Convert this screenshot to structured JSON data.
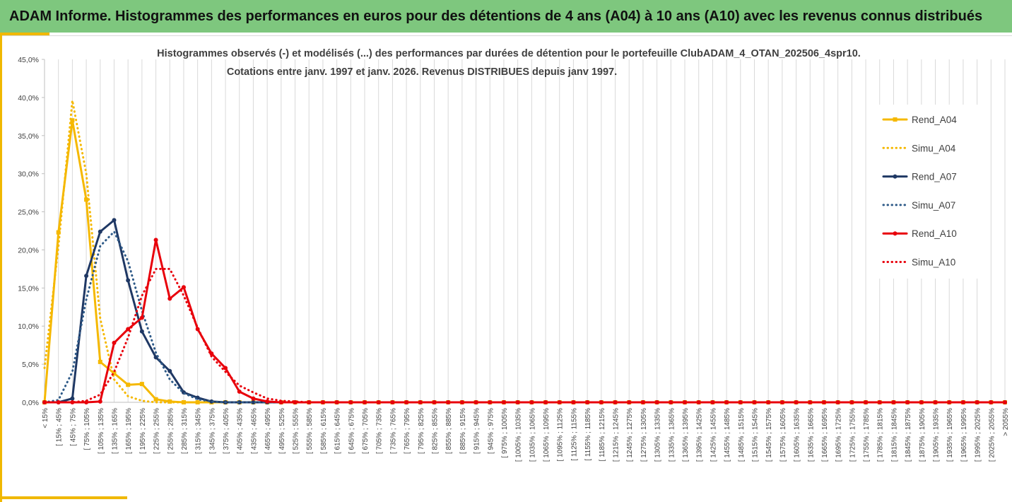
{
  "header": {
    "title": "ADAM Informe. Histogrammes des performances en euros pour des détentions de 4 ans (A04) à 10 ans (A10) avec les revenus connus distribués"
  },
  "colors": {
    "header_bg": "#7ec77e",
    "accent": "#f0b800",
    "A04": "#f5b800",
    "A07": "#1f3864",
    "A07_dotted": "#2e5a88",
    "A10": "#e8000b"
  },
  "chart_data": {
    "type": "line",
    "title_line1": "Histogrammes observés (-) et modélisés (...) des performances par durées de détention pour le portefeuille ClubADAM_4_OTAN_202506_4spr10.",
    "title_line2": "Cotations  entre  janv. 1997 et janv. 2026. Revenus DISTRIBUES depuis janv 1997.",
    "xlabel": "",
    "ylabel": "",
    "ylim": [
      0,
      45
    ],
    "yticks": [
      "0,0%",
      "5,0%",
      "10,0%",
      "15,0%",
      "20,0%",
      "25,0%",
      "30,0%",
      "35,0%",
      "40,0%",
      "45,0%"
    ],
    "legend_position": "right",
    "grid": "vertical",
    "categories": [
      "< 15%",
      "[ 15% ; 45%",
      "[ 45% ; 75%",
      "[ 75% ; 105%",
      "[ 105% ; 135%",
      "[ 135% ; 165%",
      "[ 165% ; 195%",
      "[ 195% ; 225%",
      "[ 225% ; 255%",
      "[ 255% ; 285%",
      "[ 285% ; 315%",
      "[ 315% ; 345%",
      "[ 345% ; 375%",
      "[ 375% ; 405%",
      "[ 405% ; 435%",
      "[ 435% ; 465%",
      "[ 465% ; 495%",
      "[ 495% ; 525%",
      "[ 525% ; 555%",
      "[ 555% ; 585%",
      "[ 585% ; 615%",
      "[ 615% ; 645%",
      "[ 645% ; 675%",
      "[ 675% ; 705%",
      "[ 705% ; 735%",
      "[ 735% ; 765%",
      "[ 765% ; 795%",
      "[ 795% ; 825%",
      "[ 825% ; 855%",
      "[ 855% ; 885%",
      "[ 885% ; 915%",
      "[ 915% ; 945%",
      "[ 945% ; 975%",
      "[ 975% ; 1005%",
      "[ 1005% ; 1035%",
      "[ 1035% ; 1065%",
      "[ 1065% ; 1095%",
      "[ 1095% ; 1125%",
      "[ 1125% ; 1155%",
      "[ 1155% ; 1185%",
      "[ 1185% ; 1215%",
      "[ 1215% ; 1245%",
      "[ 1245% ; 1275%",
      "[ 1275% ; 1305%",
      "[ 1305% ; 1335%",
      "[ 1335% ; 1365%",
      "[ 1365% ; 1395%",
      "[ 1395% ; 1425%",
      "[ 1425% ; 1455%",
      "[ 1455% ; 1485%",
      "[ 1485% ; 1515%",
      "[ 1515% ; 1545%",
      "[ 1545% ; 1575%",
      "[ 1575% ; 1605%",
      "[ 1605% ; 1635%",
      "[ 1635% ; 1665%",
      "[ 1665% ; 1695%",
      "[ 1695% ; 1725%",
      "[ 1725% ; 1755%",
      "[ 1755% ; 1785%",
      "[ 1785% ; 1815%",
      "[ 1815% ; 1845%",
      "[ 1845% ; 1875%",
      "[ 1875% ; 1905%",
      "[ 1905% ; 1935%",
      "[ 1935% ; 1965%",
      "[ 1965% ; 1995%",
      "[ 1995% ; 2025%",
      "[ 2025% ; 2055%",
      "> 2055%"
    ],
    "series": [
      {
        "name": "Rend_A04",
        "style": "solid",
        "marker": "square",
        "color": "#f5b800",
        "values": [
          0,
          22.3,
          37.0,
          26.6,
          5.3,
          3.8,
          2.3,
          2.4,
          0.4,
          0.1,
          0,
          0,
          0,
          0,
          0,
          0,
          0,
          0,
          0,
          0,
          0,
          0,
          0,
          0,
          0,
          0,
          0,
          0,
          0,
          0,
          0,
          0,
          0,
          0,
          0,
          0,
          0,
          0,
          0,
          0,
          0,
          0,
          0,
          0,
          0,
          0,
          0,
          0,
          0,
          0,
          0,
          0,
          0,
          0,
          0,
          0,
          0,
          0,
          0,
          0,
          0,
          0,
          0,
          0,
          0,
          0,
          0,
          0,
          0,
          0
        ]
      },
      {
        "name": "Simu_A04",
        "style": "dotted",
        "marker": "none",
        "color": "#f5b800",
        "values": [
          4.5,
          20.5,
          39.6,
          30.0,
          11.0,
          3.0,
          0.8,
          0.2,
          0,
          0,
          0,
          0,
          0,
          0,
          0,
          0,
          0,
          0,
          0,
          0,
          0,
          0,
          0,
          0,
          0,
          0,
          0,
          0,
          0,
          0,
          0,
          0,
          0,
          0,
          0,
          0,
          0,
          0,
          0,
          0,
          0,
          0,
          0,
          0,
          0,
          0,
          0,
          0,
          0,
          0,
          0,
          0,
          0,
          0,
          0,
          0,
          0,
          0,
          0,
          0,
          0,
          0,
          0,
          0,
          0,
          0,
          0,
          0,
          0,
          0
        ]
      },
      {
        "name": "Rend_A07",
        "style": "solid",
        "marker": "circle",
        "color": "#1f3864",
        "values": [
          0,
          0,
          0.5,
          16.6,
          22.4,
          23.9,
          16.0,
          9.3,
          5.9,
          4.1,
          1.3,
          0.6,
          0.1,
          0,
          0,
          0,
          0,
          0,
          0,
          0,
          0,
          0,
          0,
          0,
          0,
          0,
          0,
          0,
          0,
          0,
          0,
          0,
          0,
          0,
          0,
          0,
          0,
          0,
          0,
          0,
          0,
          0,
          0,
          0,
          0,
          0,
          0,
          0,
          0,
          0,
          0,
          0,
          0,
          0,
          0,
          0,
          0,
          0,
          0,
          0,
          0,
          0,
          0,
          0,
          0,
          0,
          0,
          0,
          0,
          0
        ]
      },
      {
        "name": "Simu_A07",
        "style": "dotted",
        "marker": "none",
        "color": "#2e5a88",
        "values": [
          0,
          0.3,
          4.0,
          13.5,
          20.5,
          22.4,
          18.5,
          12.0,
          6.5,
          3.0,
          1.2,
          0.4,
          0.1,
          0,
          0,
          0,
          0,
          0,
          0,
          0,
          0,
          0,
          0,
          0,
          0,
          0,
          0,
          0,
          0,
          0,
          0,
          0,
          0,
          0,
          0,
          0,
          0,
          0,
          0,
          0,
          0,
          0,
          0,
          0,
          0,
          0,
          0,
          0,
          0,
          0,
          0,
          0,
          0,
          0,
          0,
          0,
          0,
          0,
          0,
          0,
          0,
          0,
          0,
          0,
          0,
          0,
          0,
          0,
          0,
          0
        ]
      },
      {
        "name": "Rend_A10",
        "style": "solid",
        "marker": "circle",
        "color": "#e8000b",
        "values": [
          0,
          0,
          0,
          0,
          0.1,
          7.8,
          9.6,
          11.1,
          21.3,
          13.6,
          15.1,
          9.6,
          6.4,
          4.5,
          1.4,
          0.5,
          0.1,
          0,
          0,
          0,
          0,
          0,
          0,
          0,
          0,
          0,
          0,
          0,
          0,
          0,
          0,
          0,
          0,
          0,
          0,
          0,
          0,
          0,
          0,
          0,
          0,
          0,
          0,
          0,
          0,
          0,
          0,
          0,
          0,
          0,
          0,
          0,
          0,
          0,
          0,
          0,
          0,
          0,
          0,
          0,
          0,
          0,
          0,
          0,
          0,
          0,
          0,
          0,
          0,
          0
        ]
      },
      {
        "name": "Simu_A10",
        "style": "dotted",
        "marker": "none",
        "color": "#e8000b",
        "values": [
          0,
          0,
          0,
          0.2,
          1.0,
          4.0,
          8.5,
          14.0,
          17.5,
          17.5,
          14.0,
          9.8,
          6.0,
          4.0,
          2.2,
          1.3,
          0.5,
          0.2,
          0.1,
          0,
          0,
          0,
          0,
          0,
          0,
          0,
          0,
          0,
          0,
          0,
          0,
          0,
          0,
          0,
          0,
          0,
          0,
          0,
          0,
          0,
          0,
          0,
          0,
          0,
          0,
          0,
          0,
          0,
          0,
          0,
          0,
          0,
          0,
          0,
          0,
          0,
          0,
          0,
          0,
          0,
          0,
          0,
          0,
          0,
          0,
          0,
          0,
          0,
          0,
          0
        ]
      }
    ]
  }
}
